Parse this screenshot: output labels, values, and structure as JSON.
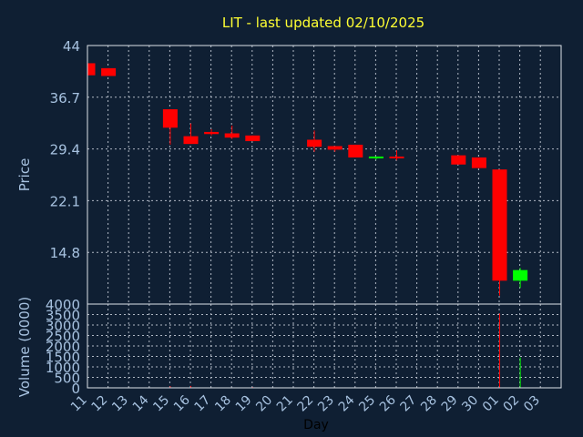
{
  "chart_data": {
    "type": "candlestick",
    "title": "LIT - last updated 02/10/2025",
    "xlabel": "Day",
    "ylabel_price": "Price",
    "ylabel_volume": "Volume (0000)",
    "x_ticks": [
      "11",
      "12",
      "13",
      "14",
      "15",
      "16",
      "17",
      "18",
      "19",
      "20",
      "21",
      "22",
      "23",
      "24",
      "25",
      "26",
      "27",
      "28",
      "29",
      "30",
      "01",
      "02",
      "03"
    ],
    "price_ylim": [
      7.5,
      44
    ],
    "price_ticks": [
      "44",
      "36.7",
      "29.4",
      "22.1",
      "14.8"
    ],
    "volume_ylim": [
      0,
      4000
    ],
    "volume_ticks": [
      "4000",
      "3500",
      "3000",
      "2500",
      "2000",
      "1500",
      "1000",
      "500",
      "0"
    ],
    "grid": true,
    "colors": {
      "up": "#00ff00",
      "down": "#ff0000",
      "background": "#0f1f33"
    },
    "candles": [
      {
        "day": "11",
        "open": 41.5,
        "close": 39.8,
        "high": 41.5,
        "low": 39.8,
        "volume": 0
      },
      {
        "day": "12",
        "open": 40.8,
        "close": 39.7,
        "high": 40.8,
        "low": 39.7,
        "volume": 0
      },
      {
        "day": "15",
        "open": 35.0,
        "close": 32.4,
        "high": 35.0,
        "low": 30.0,
        "volume": 80
      },
      {
        "day": "16",
        "open": 31.2,
        "close": 30.1,
        "high": 33.0,
        "low": 30.1,
        "volume": 90
      },
      {
        "day": "17",
        "open": 31.8,
        "close": 31.5,
        "high": 32.2,
        "low": 31.3,
        "volume": 0
      },
      {
        "day": "18",
        "open": 31.6,
        "close": 31.0,
        "high": 32.7,
        "low": 30.8,
        "volume": 0
      },
      {
        "day": "19",
        "open": 31.3,
        "close": 30.5,
        "high": 31.3,
        "low": 30.5,
        "volume": 40
      },
      {
        "day": "22",
        "open": 30.7,
        "close": 29.7,
        "high": 32.0,
        "low": 29.0,
        "volume": 0
      },
      {
        "day": "23",
        "open": 29.8,
        "close": 29.3,
        "high": 29.8,
        "low": 29.0,
        "volume": 0
      },
      {
        "day": "24",
        "open": 30.0,
        "close": 28.2,
        "high": 30.0,
        "low": 28.2,
        "volume": 0
      },
      {
        "day": "25",
        "open": 28.0,
        "close": 28.2,
        "high": 28.3,
        "low": 27.9,
        "volume": 0
      },
      {
        "day": "26",
        "open": 28.2,
        "close": 28.0,
        "high": 29.2,
        "low": 27.8,
        "volume": 0
      },
      {
        "day": "29",
        "open": 28.5,
        "close": 27.2,
        "high": 28.5,
        "low": 27.2,
        "volume": 0
      },
      {
        "day": "30",
        "open": 28.2,
        "close": 26.7,
        "high": 28.2,
        "low": 26.7,
        "volume": 0
      },
      {
        "day": "01",
        "open": 26.5,
        "close": 10.8,
        "high": 26.5,
        "low": 8.7,
        "volume": 3550
      },
      {
        "day": "02",
        "open": 10.8,
        "close": 12.3,
        "high": 12.6,
        "low": 9.8,
        "volume": 1450
      }
    ]
  }
}
